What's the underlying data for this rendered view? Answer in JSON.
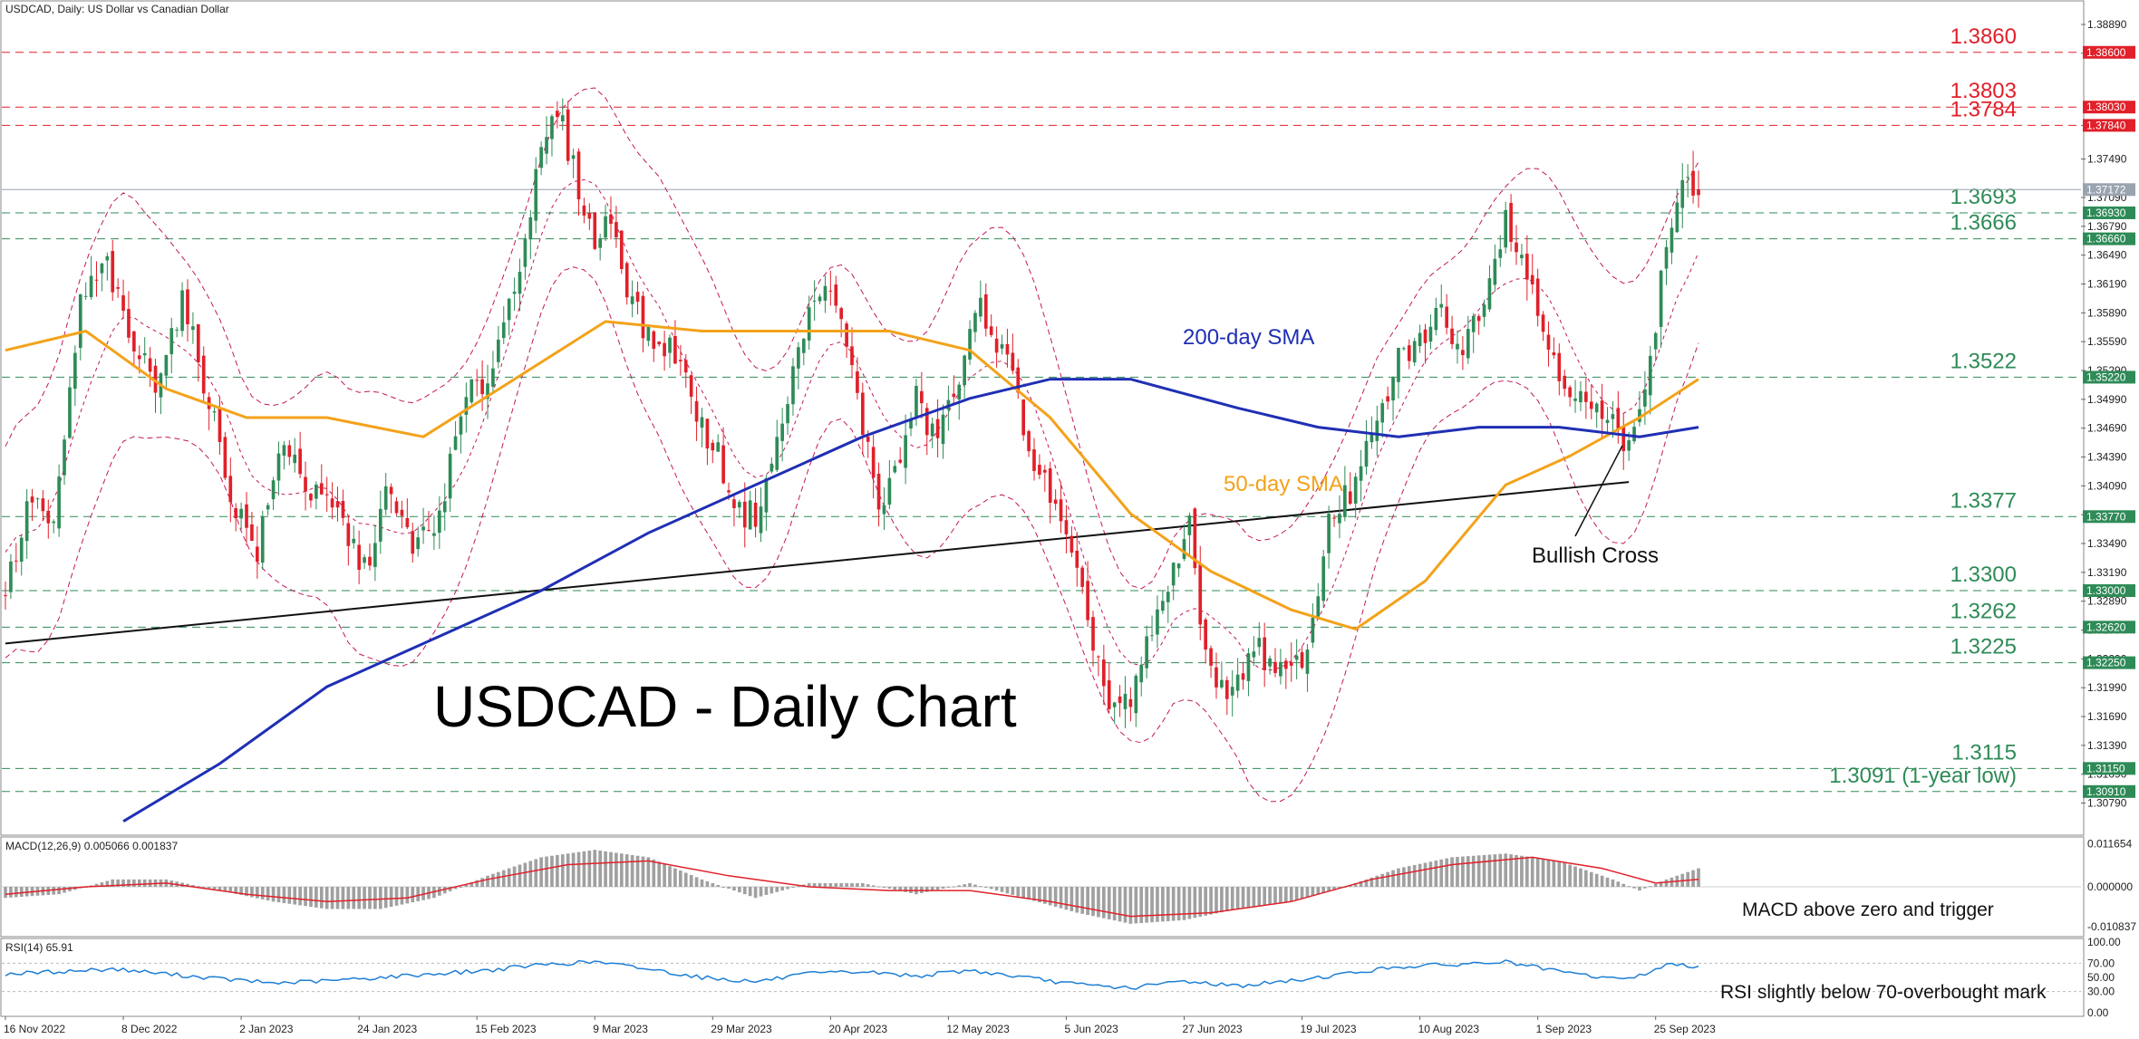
{
  "header": {
    "symbol_info": "USDCAD, Daily:  US Dollar vs Canadian Dollar"
  },
  "watermark_title": "USDCAD - Daily Chart",
  "colors": {
    "bull": "#2e8b57",
    "bear": "#e0202a",
    "sma200": "#1f2fb4",
    "sma50": "#f3a21a",
    "bollinger": "#c2185b",
    "trendline": "#111111",
    "resistance": "#e0202a",
    "support": "#2e8b57",
    "macd_hist": "#a0a0a0",
    "macd_signal": "#e0202a",
    "rsi": "#1e7fd6"
  },
  "annotations": {
    "sma200_label": "200-day SMA",
    "sma50_label": "50-day SMA",
    "cross_label": "Bullish Cross",
    "macd_note": "MACD above zero and trigger",
    "rsi_note": "RSI slightly below 70-overbought mark"
  },
  "chart_data": [
    {
      "type": "candlestick",
      "x_tick_labels": [
        "16 Nov 2022",
        "8 Dec 2022",
        "2 Jan 2023",
        "24 Jan 2023",
        "15 Feb 2023",
        "9 Mar 2023",
        "29 Mar 2023",
        "20 Apr 2023",
        "12 May 2023",
        "5 Jun 2023",
        "27 Jun 2023",
        "19 Jul 2023",
        "10 Aug 2023",
        "1 Sep 2023",
        "25 Sep 2023"
      ],
      "y_tick_labels": [
        "1.38890",
        "1.38590",
        "1.37840",
        "1.37490",
        "1.37090",
        "1.36790",
        "1.36490",
        "1.36190",
        "1.35890",
        "1.35590",
        "1.35290",
        "1.34990",
        "1.34690",
        "1.34390",
        "1.34090",
        "1.33790",
        "1.33490",
        "1.33190",
        "1.32890",
        "1.32590",
        "1.32290",
        "1.31990",
        "1.31690",
        "1.31390",
        "1.31090",
        "1.30790"
      ],
      "ylim": [
        1.3055,
        1.3905
      ],
      "current_price": "1.37172",
      "levels": [
        {
          "value": 1.386,
          "label": "1.3860",
          "axis_label": "1.38600",
          "kind": "resistance"
        },
        {
          "value": 1.3803,
          "label": "1.3803",
          "axis_label": "1.38030",
          "kind": "resistance"
        },
        {
          "value": 1.3784,
          "label": "1.3784",
          "axis_label": "1.37840",
          "kind": "resistance"
        },
        {
          "value": 1.3693,
          "label": "1.3693",
          "axis_label": "1.36930",
          "kind": "support"
        },
        {
          "value": 1.3666,
          "label": "1.3666",
          "axis_label": "1.36660",
          "kind": "support"
        },
        {
          "value": 1.3522,
          "label": "1.3522",
          "axis_label": "1.35220",
          "kind": "support"
        },
        {
          "value": 1.3377,
          "label": "1.3377",
          "axis_label": "1.33770",
          "kind": "support"
        },
        {
          "value": 1.33,
          "label": "1.3300",
          "axis_label": "1.33000",
          "kind": "support"
        },
        {
          "value": 1.3262,
          "label": "1.3262",
          "axis_label": "1.32620",
          "kind": "support"
        },
        {
          "value": 1.3225,
          "label": "1.3225",
          "axis_label": "1.32250",
          "kind": "support"
        },
        {
          "value": 1.3115,
          "label": "1.3115",
          "axis_label": "1.31150",
          "kind": "support"
        },
        {
          "value": 1.3091,
          "label": "1.3091 (1-year low)",
          "axis_label": "1.30910",
          "kind": "support"
        }
      ],
      "price_path": [
        [
          0,
          1.33
        ],
        [
          5,
          1.34
        ],
        [
          9,
          1.336
        ],
        [
          14,
          1.36
        ],
        [
          19,
          1.364
        ],
        [
          23,
          1.356
        ],
        [
          28,
          1.352
        ],
        [
          33,
          1.36
        ],
        [
          38,
          1.35
        ],
        [
          42,
          1.34
        ],
        [
          47,
          1.334
        ],
        [
          52,
          1.346
        ],
        [
          57,
          1.34
        ],
        [
          62,
          1.338
        ],
        [
          67,
          1.332
        ],
        [
          71,
          1.34
        ],
        [
          76,
          1.335
        ],
        [
          80,
          1.336
        ],
        [
          86,
          1.35
        ],
        [
          90,
          1.352
        ],
        [
          95,
          1.362
        ],
        [
          100,
          1.375
        ],
        [
          103,
          1.38
        ],
        [
          107,
          1.372
        ],
        [
          110,
          1.366
        ],
        [
          113,
          1.369
        ],
        [
          116,
          1.362
        ],
        [
          120,
          1.356
        ],
        [
          125,
          1.355
        ],
        [
          130,
          1.347
        ],
        [
          133,
          1.344
        ],
        [
          137,
          1.338
        ],
        [
          140,
          1.338
        ],
        [
          144,
          1.345
        ],
        [
          148,
          1.355
        ],
        [
          152,
          1.362
        ],
        [
          156,
          1.358
        ],
        [
          159,
          1.35
        ],
        [
          163,
          1.339
        ],
        [
          166,
          1.342
        ],
        [
          170,
          1.35
        ],
        [
          173,
          1.346
        ],
        [
          177,
          1.35
        ],
        [
          182,
          1.36
        ],
        [
          185,
          1.356
        ],
        [
          188,
          1.352
        ],
        [
          192,
          1.343
        ],
        [
          195,
          1.34
        ],
        [
          199,
          1.333
        ],
        [
          203,
          1.325
        ],
        [
          206,
          1.318
        ],
        [
          210,
          1.318
        ],
        [
          214,
          1.326
        ],
        [
          217,
          1.33
        ],
        [
          221,
          1.338
        ],
        [
          223,
          1.325
        ],
        [
          227,
          1.32
        ],
        [
          230,
          1.32
        ],
        [
          233,
          1.325
        ],
        [
          237,
          1.321
        ],
        [
          241,
          1.322
        ],
        [
          244,
          1.326
        ],
        [
          247,
          1.338
        ],
        [
          251,
          1.34
        ],
        [
          256,
          1.347
        ],
        [
          260,
          1.354
        ],
        [
          264,
          1.356
        ],
        [
          268,
          1.359
        ],
        [
          272,
          1.355
        ],
        [
          276,
          1.361
        ],
        [
          280,
          1.369
        ],
        [
          283,
          1.365
        ],
        [
          287,
          1.357
        ],
        [
          291,
          1.352
        ],
        [
          295,
          1.349
        ],
        [
          298,
          1.348
        ],
        [
          302,
          1.346
        ],
        [
          306,
          1.35
        ],
        [
          310,
          1.366
        ],
        [
          313,
          1.373
        ],
        [
          316,
          1.371
        ]
      ],
      "sma50": [
        [
          0,
          1.355
        ],
        [
          15,
          1.357
        ],
        [
          30,
          1.351
        ],
        [
          45,
          1.348
        ],
        [
          60,
          1.348
        ],
        [
          78,
          1.346
        ],
        [
          95,
          1.352
        ],
        [
          112,
          1.358
        ],
        [
          130,
          1.357
        ],
        [
          150,
          1.357
        ],
        [
          165,
          1.357
        ],
        [
          180,
          1.355
        ],
        [
          195,
          1.348
        ],
        [
          210,
          1.338
        ],
        [
          225,
          1.332
        ],
        [
          240,
          1.328
        ],
        [
          252,
          1.326
        ],
        [
          265,
          1.331
        ],
        [
          280,
          1.341
        ],
        [
          292,
          1.344
        ],
        [
          305,
          1.348
        ],
        [
          316,
          1.352
        ]
      ],
      "sma200": [
        [
          22,
          1.306
        ],
        [
          40,
          1.312
        ],
        [
          60,
          1.32
        ],
        [
          80,
          1.325
        ],
        [
          100,
          1.33
        ],
        [
          120,
          1.336
        ],
        [
          140,
          1.341
        ],
        [
          160,
          1.346
        ],
        [
          180,
          1.35
        ],
        [
          195,
          1.352
        ],
        [
          210,
          1.352
        ],
        [
          230,
          1.349
        ],
        [
          245,
          1.347
        ],
        [
          260,
          1.346
        ],
        [
          275,
          1.347
        ],
        [
          290,
          1.347
        ],
        [
          305,
          1.346
        ],
        [
          316,
          1.347
        ]
      ],
      "trendline": [
        [
          0,
          1.3245
        ],
        [
          303,
          1.3413
        ]
      ],
      "bollinger_band_pattern": "envelope around price, about ±0.012"
    },
    {
      "type": "histogram",
      "title": "MACD(12,26,9) 0.005066 0.001837",
      "y_tick_labels": [
        "0.011654",
        "0.000000",
        "-0.010837"
      ],
      "ylim": [
        -0.0125,
        0.0125
      ],
      "macd_path": [
        [
          0,
          -0.003
        ],
        [
          10,
          -0.002
        ],
        [
          20,
          0.002
        ],
        [
          30,
          0.002
        ],
        [
          40,
          -0.001
        ],
        [
          50,
          -0.004
        ],
        [
          60,
          -0.006
        ],
        [
          70,
          -0.006
        ],
        [
          80,
          -0.003
        ],
        [
          90,
          0.003
        ],
        [
          100,
          0.008
        ],
        [
          110,
          0.01
        ],
        [
          120,
          0.008
        ],
        [
          130,
          0.002
        ],
        [
          140,
          -0.003
        ],
        [
          150,
          0.001
        ],
        [
          160,
          0.001
        ],
        [
          170,
          -0.002
        ],
        [
          180,
          0.001
        ],
        [
          190,
          -0.003
        ],
        [
          200,
          -0.007
        ],
        [
          210,
          -0.01
        ],
        [
          220,
          -0.009
        ],
        [
          230,
          -0.006
        ],
        [
          240,
          -0.004
        ],
        [
          250,
          0.0
        ],
        [
          260,
          0.005
        ],
        [
          270,
          0.008
        ],
        [
          280,
          0.009
        ],
        [
          290,
          0.007
        ],
        [
          300,
          0.002
        ],
        [
          305,
          -0.001
        ],
        [
          310,
          0.002
        ],
        [
          316,
          0.005
        ]
      ],
      "signal_path": [
        [
          0,
          -0.002
        ],
        [
          15,
          0.0
        ],
        [
          30,
          0.001
        ],
        [
          45,
          -0.002
        ],
        [
          60,
          -0.004
        ],
        [
          75,
          -0.003
        ],
        [
          90,
          0.002
        ],
        [
          105,
          0.006
        ],
        [
          120,
          0.007
        ],
        [
          135,
          0.003
        ],
        [
          150,
          0.0
        ],
        [
          165,
          -0.001
        ],
        [
          180,
          -0.001
        ],
        [
          195,
          -0.004
        ],
        [
          210,
          -0.008
        ],
        [
          225,
          -0.007
        ],
        [
          240,
          -0.004
        ],
        [
          255,
          0.002
        ],
        [
          270,
          0.006
        ],
        [
          285,
          0.008
        ],
        [
          298,
          0.005
        ],
        [
          308,
          0.001
        ],
        [
          316,
          0.002
        ]
      ]
    },
    {
      "type": "line",
      "title": "RSI(14) 65.91",
      "y_tick_labels": [
        "100.00",
        "70.00",
        "50.00",
        "30.00",
        "0.00"
      ],
      "ylim": [
        0,
        100
      ],
      "rsi_path": [
        [
          0,
          55
        ],
        [
          10,
          58
        ],
        [
          20,
          62
        ],
        [
          30,
          55
        ],
        [
          40,
          48
        ],
        [
          50,
          42
        ],
        [
          60,
          45
        ],
        [
          70,
          50
        ],
        [
          80,
          55
        ],
        [
          90,
          60
        ],
        [
          100,
          68
        ],
        [
          110,
          72
        ],
        [
          120,
          62
        ],
        [
          130,
          50
        ],
        [
          140,
          44
        ],
        [
          150,
          55
        ],
        [
          160,
          58
        ],
        [
          170,
          52
        ],
        [
          180,
          60
        ],
        [
          190,
          50
        ],
        [
          200,
          40
        ],
        [
          210,
          35
        ],
        [
          220,
          45
        ],
        [
          230,
          38
        ],
        [
          240,
          45
        ],
        [
          250,
          55
        ],
        [
          260,
          65
        ],
        [
          270,
          68
        ],
        [
          280,
          72
        ],
        [
          290,
          58
        ],
        [
          300,
          48
        ],
        [
          305,
          52
        ],
        [
          310,
          68
        ],
        [
          316,
          66
        ]
      ]
    }
  ]
}
